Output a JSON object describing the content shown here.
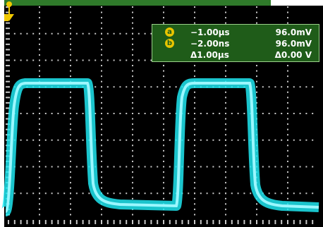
{
  "scope": {
    "trace_color": "#1ee6f0",
    "grid_color": "#c8c8c8",
    "trigger_marker_color": "#f0c800",
    "panel_color": "#1f5c19"
  },
  "readout": {
    "cursor_a": {
      "tag": "a",
      "time": "−1.00µs",
      "value": "96.0mV"
    },
    "cursor_b": {
      "tag": "b",
      "time": "−2.00ns",
      "value": "96.0mV"
    },
    "delta": {
      "time": "Δ1.00µs",
      "value": "Δ0.00 V"
    }
  },
  "icons": {
    "trigger_marker": "trigger-position-icon",
    "ground_marker": "channel-ground-icon"
  }
}
